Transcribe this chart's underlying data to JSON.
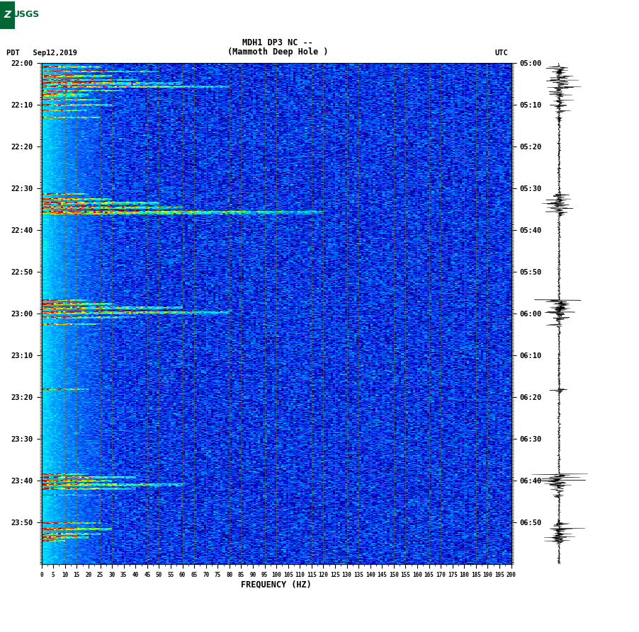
{
  "title_line1": "MDH1 DP3 NC --",
  "title_line2": "(Mammoth Deep Hole )",
  "left_label": "PDT   Sep12,2019",
  "right_label": "UTC",
  "xlabel": "FREQUENCY (HZ)",
  "freq_min": 0,
  "freq_max": 200,
  "freq_ticks": [
    0,
    5,
    10,
    15,
    20,
    25,
    30,
    35,
    40,
    45,
    50,
    55,
    60,
    65,
    70,
    75,
    80,
    85,
    90,
    95,
    100,
    105,
    110,
    115,
    120,
    125,
    130,
    135,
    140,
    145,
    150,
    155,
    160,
    165,
    170,
    175,
    180,
    185,
    190,
    195,
    200
  ],
  "left_yticks": [
    "22:00",
    "22:10",
    "22:20",
    "22:30",
    "22:40",
    "22:50",
    "23:00",
    "23:10",
    "23:20",
    "23:30",
    "23:40",
    "23:50"
  ],
  "right_yticks": [
    "05:00",
    "05:10",
    "05:20",
    "05:30",
    "05:40",
    "05:50",
    "06:00",
    "06:10",
    "06:20",
    "06:30",
    "06:40",
    "06:50"
  ],
  "grid_color": "#8B6914",
  "usgs_green": "#006633",
  "n_times": 720,
  "n_freqs": 200,
  "seed": 42,
  "events": [
    {
      "t": 5,
      "dur": 3,
      "fmax": 25,
      "strength": 10.0
    },
    {
      "t": 12,
      "dur": 2,
      "fmax": 50,
      "strength": 6.0
    },
    {
      "t": 18,
      "dur": 3,
      "fmax": 30,
      "strength": 8.0
    },
    {
      "t": 24,
      "dur": 2,
      "fmax": 40,
      "strength": 9.0
    },
    {
      "t": 28,
      "dur": 4,
      "fmax": 60,
      "strength": 7.0
    },
    {
      "t": 34,
      "dur": 3,
      "fmax": 80,
      "strength": 7.5
    },
    {
      "t": 40,
      "dur": 2,
      "fmax": 35,
      "strength": 8.0
    },
    {
      "t": 45,
      "dur": 5,
      "fmax": 20,
      "strength": 6.0
    },
    {
      "t": 53,
      "dur": 2,
      "fmax": 25,
      "strength": 7.0
    },
    {
      "t": 60,
      "dur": 3,
      "fmax": 30,
      "strength": 6.5
    },
    {
      "t": 68,
      "dur": 2,
      "fmax": 20,
      "strength": 6.0
    },
    {
      "t": 78,
      "dur": 2,
      "fmax": 25,
      "strength": 5.5
    },
    {
      "t": 188,
      "dur": 2,
      "fmax": 20,
      "strength": 9.0
    },
    {
      "t": 195,
      "dur": 3,
      "fmax": 30,
      "strength": 8.5
    },
    {
      "t": 200,
      "dur": 4,
      "fmax": 50,
      "strength": 9.5
    },
    {
      "t": 207,
      "dur": 3,
      "fmax": 60,
      "strength": 8.0
    },
    {
      "t": 213,
      "dur": 5,
      "fmax": 120,
      "strength": 7.0
    },
    {
      "t": 340,
      "dur": 2,
      "fmax": 20,
      "strength": 9.0
    },
    {
      "t": 345,
      "dur": 3,
      "fmax": 30,
      "strength": 9.5
    },
    {
      "t": 350,
      "dur": 4,
      "fmax": 60,
      "strength": 9.0
    },
    {
      "t": 357,
      "dur": 5,
      "fmax": 80,
      "strength": 8.5
    },
    {
      "t": 365,
      "dur": 3,
      "fmax": 40,
      "strength": 7.5
    },
    {
      "t": 375,
      "dur": 2,
      "fmax": 25,
      "strength": 6.5
    },
    {
      "t": 468,
      "dur": 2,
      "fmax": 20,
      "strength": 7.0
    },
    {
      "t": 590,
      "dur": 2,
      "fmax": 20,
      "strength": 9.5
    },
    {
      "t": 594,
      "dur": 3,
      "fmax": 40,
      "strength": 10.0
    },
    {
      "t": 599,
      "dur": 3,
      "fmax": 30,
      "strength": 9.0
    },
    {
      "t": 604,
      "dur": 4,
      "fmax": 60,
      "strength": 8.0
    },
    {
      "t": 610,
      "dur": 3,
      "fmax": 40,
      "strength": 7.5
    },
    {
      "t": 620,
      "dur": 2,
      "fmax": 25,
      "strength": 6.5
    },
    {
      "t": 660,
      "dur": 2,
      "fmax": 25,
      "strength": 8.0
    },
    {
      "t": 668,
      "dur": 3,
      "fmax": 30,
      "strength": 8.5
    },
    {
      "t": 675,
      "dur": 3,
      "fmax": 25,
      "strength": 9.5
    },
    {
      "t": 680,
      "dur": 3,
      "fmax": 20,
      "strength": 9.0
    },
    {
      "t": 685,
      "dur": 2,
      "fmax": 10,
      "strength": 7.0
    }
  ]
}
